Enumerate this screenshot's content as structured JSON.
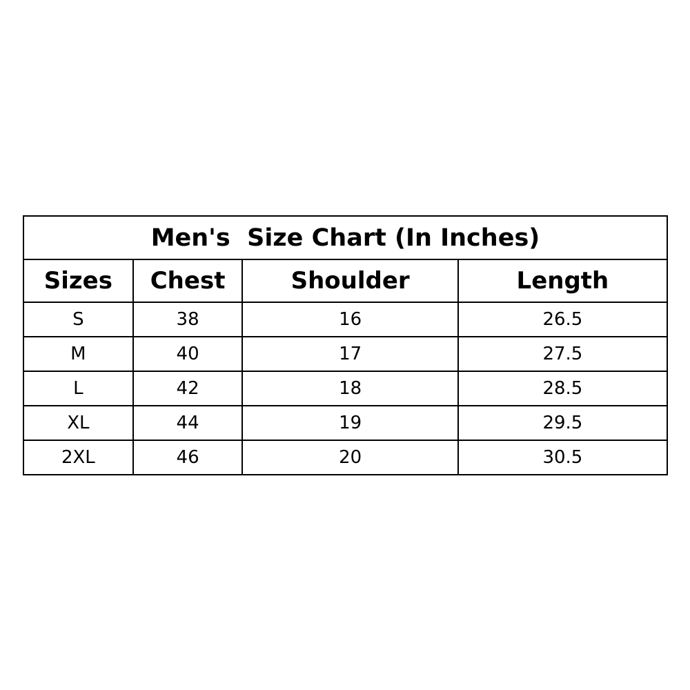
{
  "title": "Men's  Size Chart (In Inches)",
  "headers": [
    "Sizes",
    "Chest",
    "Shoulder",
    "Length"
  ],
  "rows": [
    [
      "S",
      "38",
      "16",
      "26.5"
    ],
    [
      "M",
      "40",
      "17",
      "27.5"
    ],
    [
      "L",
      "42",
      "18",
      "28.5"
    ],
    [
      "XL",
      "44",
      "19",
      "29.5"
    ],
    [
      "2XL",
      "46",
      "20",
      "30.5"
    ]
  ]
}
